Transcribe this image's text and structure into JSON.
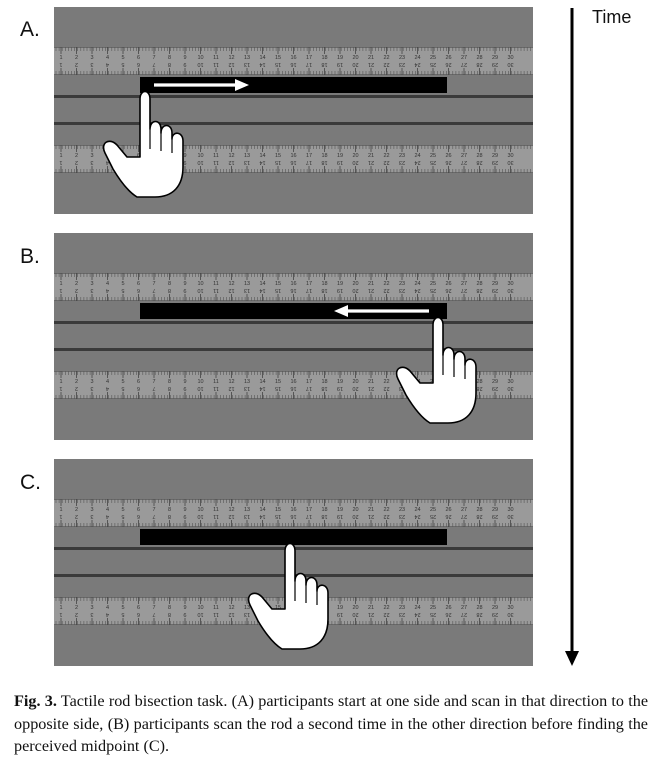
{
  "figure": {
    "time_label": "Time",
    "panels": [
      {
        "label": "A.",
        "hand_position": "start",
        "arrow_direction": "right"
      },
      {
        "label": "B.",
        "hand_position": "end",
        "arrow_direction": "left"
      },
      {
        "label": "C.",
        "hand_position": "middle",
        "arrow_direction": "none"
      }
    ],
    "ruler_numbers": [
      "1",
      "2",
      "3",
      "4",
      "5",
      "6",
      "7",
      "8",
      "9",
      "10",
      "11",
      "12",
      "13",
      "14",
      "15",
      "16",
      "17",
      "18",
      "19",
      "20",
      "21",
      "22",
      "23",
      "24",
      "25",
      "26",
      "27",
      "28",
      "29",
      "30"
    ],
    "colors": {
      "panel_background": "#7a7a7a",
      "ruler": "#9a9a9a",
      "rod": "#000000",
      "track_line": "#3a3a3a",
      "hand": "#ffffff",
      "arrow": "#ffffff"
    }
  },
  "caption": {
    "label": "Fig. 3.",
    "text": " Tactile rod bisection task. (A) participants start at one side and scan in that direction to the opposite side, (B) participants scan the rod a second time in the other direction before finding the perceived midpoint (C)."
  }
}
